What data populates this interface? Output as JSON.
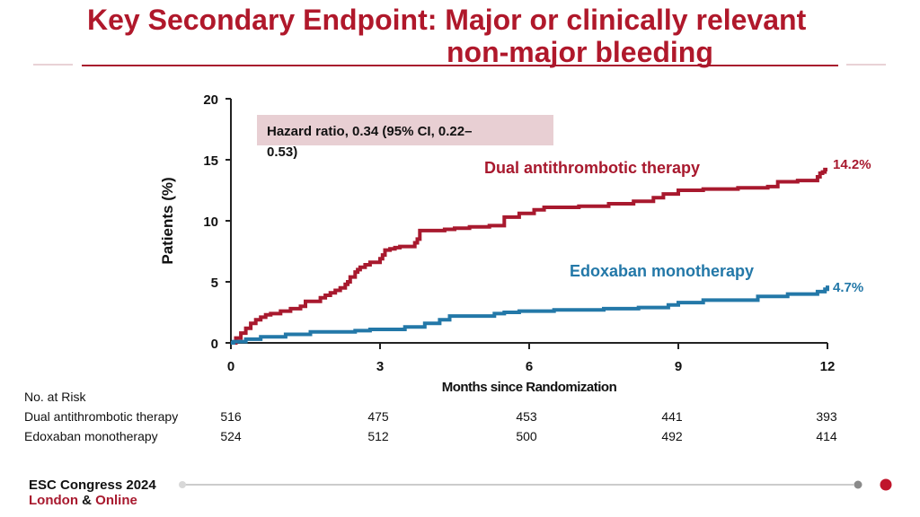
{
  "slide": {
    "title_line1": "Key Secondary Endpoint:  Major or clinically relevant",
    "title_line2": "non-major bleeding"
  },
  "colors": {
    "title": "#b0182b",
    "dual": "#a8192e",
    "edoxaban": "#2378a8",
    "hr_box": "#e8cfd3"
  },
  "chart_data": {
    "type": "line",
    "subtype": "kaplan-meier",
    "xlabel": "Months since Randomization",
    "ylabel": "Patients (%)",
    "xlim": [
      0,
      12
    ],
    "ylim": [
      0,
      20
    ],
    "xticks": [
      0,
      3,
      6,
      9,
      12
    ],
    "yticks": [
      0,
      5,
      10,
      15,
      20
    ],
    "annotation": "Hazard ratio, 0.34 (95% CI, 0.22–0.53)",
    "series": [
      {
        "name": "Dual antithrombotic therapy",
        "end_label": "14.2%",
        "x": [
          0,
          0.1,
          0.2,
          0.3,
          0.4,
          0.5,
          0.6,
          0.7,
          0.8,
          1.0,
          1.2,
          1.4,
          1.5,
          1.8,
          1.9,
          2.0,
          2.1,
          2.2,
          2.3,
          2.35,
          2.4,
          2.5,
          2.55,
          2.6,
          2.7,
          2.8,
          3.0,
          3.05,
          3.1,
          3.2,
          3.3,
          3.4,
          3.7,
          3.75,
          3.8,
          4.3,
          4.5,
          4.8,
          5.2,
          5.5,
          5.8,
          6.1,
          6.3,
          7.0,
          7.6,
          8.1,
          8.5,
          8.7,
          9.0,
          9.5,
          10.2,
          10.8,
          11.0,
          11.4,
          11.8,
          11.85,
          11.9,
          11.95,
          12.0
        ],
        "y": [
          0,
          0.4,
          0.8,
          1.2,
          1.6,
          1.9,
          2.1,
          2.3,
          2.4,
          2.6,
          2.8,
          3.0,
          3.4,
          3.7,
          3.9,
          4.1,
          4.3,
          4.5,
          4.8,
          5.0,
          5.4,
          5.8,
          6.0,
          6.2,
          6.4,
          6.6,
          6.9,
          7.2,
          7.6,
          7.7,
          7.8,
          7.9,
          8.2,
          8.5,
          9.2,
          9.3,
          9.4,
          9.5,
          9.6,
          10.3,
          10.6,
          10.9,
          11.1,
          11.2,
          11.4,
          11.6,
          11.9,
          12.2,
          12.5,
          12.6,
          12.7,
          12.8,
          13.2,
          13.3,
          13.6,
          13.9,
          14.0,
          14.2,
          14.2
        ]
      },
      {
        "name": "Edoxaban monotherapy",
        "end_label": "4.7%",
        "x": [
          0,
          0.05,
          0.3,
          0.6,
          1.1,
          1.6,
          2.5,
          2.8,
          3.5,
          3.9,
          4.2,
          4.4,
          5.3,
          5.5,
          5.8,
          6.5,
          7.5,
          8.2,
          8.8,
          9.0,
          9.5,
          10.6,
          11.2,
          11.8,
          11.95,
          12.0
        ],
        "y": [
          0,
          0.1,
          0.3,
          0.5,
          0.7,
          0.9,
          1.0,
          1.1,
          1.3,
          1.6,
          1.9,
          2.2,
          2.4,
          2.5,
          2.6,
          2.7,
          2.8,
          2.9,
          3.1,
          3.3,
          3.5,
          3.8,
          4.0,
          4.2,
          4.4,
          4.7
        ]
      }
    ],
    "risk_table": {
      "header": "No. at Risk",
      "rows": [
        {
          "label": "Dual antithrombotic therapy",
          "values": [
            "516",
            "475",
            "453",
            "441",
            "393"
          ]
        },
        {
          "label": "Edoxaban monotherapy",
          "values": [
            "524",
            "512",
            "500",
            "492",
            "414"
          ]
        }
      ]
    }
  },
  "footer": {
    "conference_line1": "ESC Congress 2024",
    "conference_line2_a": "London",
    "conference_line2_amp": " & ",
    "conference_line2_b": "Online"
  }
}
